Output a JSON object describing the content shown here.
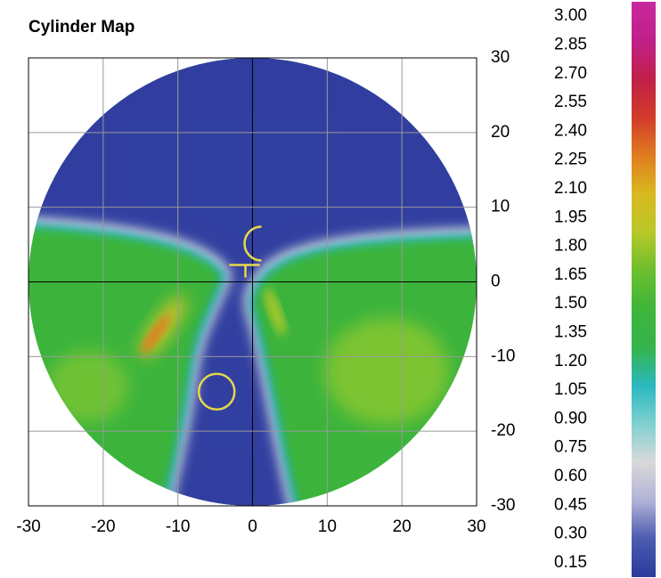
{
  "chart_data": {
    "type": "heatmap",
    "title": "Cylinder Map",
    "xlim": [
      -30,
      30
    ],
    "ylim": [
      -30,
      30
    ],
    "xticks": [
      -30,
      -20,
      -10,
      0,
      10,
      20,
      30
    ],
    "yticks": [
      -30,
      -20,
      -10,
      0,
      10,
      20,
      30
    ],
    "grid": true,
    "colorbar": {
      "lim": [
        0.075,
        3.075
      ],
      "ticks": [
        {
          "value": 3,
          "label": "3.00"
        },
        {
          "value": 2.85,
          "label": "2.85"
        },
        {
          "value": 2.7,
          "label": "2.70"
        },
        {
          "value": 2.55,
          "label": "2.55"
        },
        {
          "value": 2.4,
          "label": "2.40"
        },
        {
          "value": 2.25,
          "label": "2.25"
        },
        {
          "value": 2.1,
          "label": "2.10"
        },
        {
          "value": 1.95,
          "label": "1.95"
        },
        {
          "value": 1.8,
          "label": "1.80"
        },
        {
          "value": 1.65,
          "label": "1.65"
        },
        {
          "value": 1.5,
          "label": "1.50"
        },
        {
          "value": 1.35,
          "label": "1.35"
        },
        {
          "value": 1.2,
          "label": "1.20"
        },
        {
          "value": 1.05,
          "label": "1.05"
        },
        {
          "value": 0.9,
          "label": "0.90"
        },
        {
          "value": 0.75,
          "label": "0.75"
        },
        {
          "value": 0.6,
          "label": "0.60"
        },
        {
          "value": 0.45,
          "label": "0.45"
        },
        {
          "value": 0.3,
          "label": "0.30"
        },
        {
          "value": 0.15,
          "label": "0.15"
        }
      ],
      "colors": [
        "#2a3a9c",
        "#4b5cb0",
        "#b2b2d8",
        "#d9d9d9",
        "#7fd0d0",
        "#2ab8c0",
        "#35b44a",
        "#3fb53a",
        "#6cbf2e",
        "#b8c828",
        "#d9b820",
        "#e07b20",
        "#d23a2a",
        "#c02048",
        "#c0208a",
        "#c8289e"
      ]
    }
  }
}
